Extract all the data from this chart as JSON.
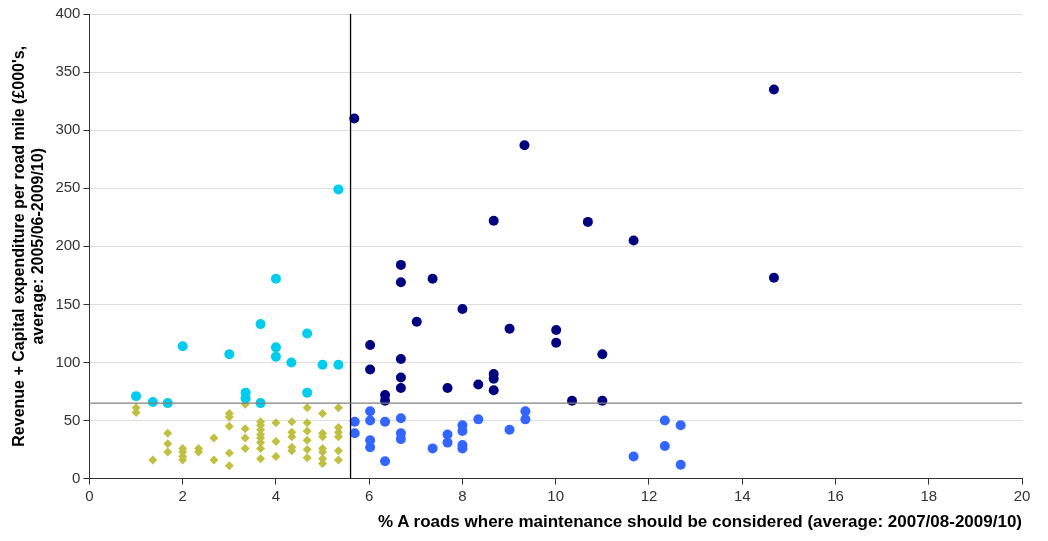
{
  "chart_data": {
    "type": "scatter",
    "xlabel": "% A roads where maintenance should be considered (average: 2007/08-2009/10)",
    "ylabel": "Revenue + Capital expenditure per road mile (£000's, average: 2005/06-2009/10)",
    "xlim": [
      0,
      20
    ],
    "xticks": [
      0,
      2,
      4,
      6,
      8,
      10,
      12,
      14,
      16,
      18,
      20
    ],
    "ylim": [
      0,
      400
    ],
    "yticks": [
      0,
      50,
      100,
      150,
      200,
      250,
      300,
      350,
      400
    ],
    "grid": "y",
    "legend": false,
    "marker": "circle",
    "ref_lines": [
      {
        "axis": "x",
        "value": 5.6,
        "color": "#000000"
      },
      {
        "axis": "y",
        "value": 65,
        "color": "#808080"
      }
    ],
    "series": [
      {
        "color": "#00ccee",
        "x": [
          1.0,
          1.36,
          1.68,
          2.0,
          3.0,
          3.35,
          3.35,
          3.67,
          4.0,
          3.67,
          4.0,
          4.0,
          4.33,
          4.67,
          4.67,
          5.0,
          5.34,
          5.34
        ],
        "values": [
          71,
          66,
          65,
          114,
          107,
          74,
          69,
          65,
          172,
          133,
          113,
          105,
          100,
          125,
          74,
          98,
          98,
          249
        ]
      },
      {
        "color": "#000080",
        "x": [
          5.68,
          9.33,
          14.68,
          14.68,
          8.67,
          10.69,
          11.67,
          6.68,
          6.68,
          7.36,
          8.0,
          7.02,
          9.01,
          10.01,
          10.01,
          6.02,
          11.0,
          6.68,
          6.02,
          6.68,
          8.67,
          8.67,
          6.68,
          7.68,
          8.34,
          8.67,
          6.34,
          6.34,
          10.35,
          11.0
        ],
        "values": [
          310,
          287,
          335,
          173,
          222,
          221,
          205,
          184,
          169,
          172,
          146,
          135,
          129,
          128,
          117,
          115,
          107,
          103,
          94,
          87,
          90,
          86,
          78,
          78,
          81,
          76,
          72,
          67,
          67,
          67
        ]
      },
      {
        "color": "#3366ff",
        "x": [
          6.02,
          5.69,
          6.02,
          6.34,
          6.68,
          5.69,
          6.02,
          6.02,
          6.34,
          6.68,
          6.68,
          7.36,
          7.68,
          7.68,
          8.0,
          8.0,
          8.0,
          8.0,
          8.34,
          9.01,
          9.35,
          9.35,
          11.67,
          12.34,
          12.34,
          12.68,
          12.68
        ],
        "values": [
          58,
          49,
          50,
          49,
          52,
          39,
          33,
          27,
          15,
          39,
          34,
          26,
          38,
          31,
          46,
          41,
          29,
          26,
          51,
          42,
          58,
          51,
          19,
          50,
          28,
          46,
          12
        ]
      },
      {
        "color": "#c0c040",
        "marker": "diamond",
        "x": [
          1.0,
          1.0,
          1.36,
          1.68,
          1.68,
          1.68,
          2.0,
          2.0,
          2.0,
          2.0,
          2.34,
          2.34,
          2.67,
          2.67,
          3.0,
          3.0,
          3.0,
          3.0,
          3.0,
          3.34,
          3.34,
          3.34,
          3.34,
          3.67,
          3.67,
          3.67,
          3.67,
          3.67,
          3.67,
          3.67,
          3.67,
          4.0,
          4.0,
          4.0,
          4.34,
          4.34,
          4.34,
          4.34,
          4.34,
          4.67,
          4.67,
          4.67,
          4.67,
          4.67,
          4.67,
          5.0,
          5.0,
          5.0,
          5.0,
          5.0,
          5.0,
          5.0,
          5.34,
          5.34,
          5.34,
          5.34,
          5.34,
          5.34
        ],
        "values": [
          61,
          57,
          16,
          39,
          30,
          23,
          26,
          23,
          19,
          16,
          26,
          23,
          35,
          16,
          56,
          53,
          45,
          22,
          11,
          64,
          43,
          35,
          26,
          49,
          46,
          42,
          38,
          35,
          31,
          26,
          17,
          48,
          32,
          19,
          49,
          40,
          36,
          27,
          24,
          61,
          48,
          41,
          33,
          25,
          18,
          56,
          39,
          36,
          26,
          23,
          17,
          13,
          61,
          44,
          40,
          36,
          24,
          16
        ]
      }
    ]
  }
}
